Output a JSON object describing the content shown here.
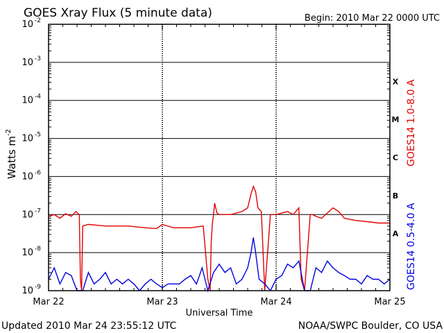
{
  "chart_data": {
    "type": "line",
    "title": "GOES Xray Flux (5 minute data)",
    "begin_label": "Begin:  2010 Mar 22 0000 UTC",
    "xlabel": "Universal Time",
    "ylabel_base": "Watts m",
    "ylabel_sup": "-2",
    "x_ticks": [
      "Mar 22",
      "Mar 23",
      "Mar 24",
      "Mar 25"
    ],
    "x_range_days": [
      0,
      3
    ],
    "y_ticks": [
      {
        "base": "10",
        "exp": "-2"
      },
      {
        "base": "10",
        "exp": "-3"
      },
      {
        "base": "10",
        "exp": "-4"
      },
      {
        "base": "10",
        "exp": "-5"
      },
      {
        "base": "10",
        "exp": "-6"
      },
      {
        "base": "10",
        "exp": "-7"
      },
      {
        "base": "10",
        "exp": "-8"
      },
      {
        "base": "10",
        "exp": "-9"
      }
    ],
    "y_scale": "log",
    "ylim": [
      1e-09,
      0.01
    ],
    "flare_classes": [
      "X",
      "M",
      "C",
      "B",
      "A"
    ],
    "series": [
      {
        "name": "GOES14 1.0-8.0 A",
        "color": "#e00000",
        "x": [
          0.0,
          0.05,
          0.1,
          0.15,
          0.2,
          0.24,
          0.27,
          0.28,
          0.29,
          0.3,
          0.35,
          0.5,
          0.7,
          0.85,
          0.95,
          1.0,
          1.1,
          1.25,
          1.36,
          1.4,
          1.42,
          1.43,
          1.44,
          1.45,
          1.46,
          1.48,
          1.5,
          1.6,
          1.7,
          1.75,
          1.78,
          1.8,
          1.82,
          1.84,
          1.87,
          1.9,
          1.95,
          2.0,
          2.1,
          2.15,
          2.2,
          2.22,
          2.25,
          2.3,
          2.32,
          2.35,
          2.4,
          2.5,
          2.55,
          2.6,
          2.7,
          2.8,
          2.9,
          2.95,
          3.0
        ],
        "y": [
          9e-08,
          1e-07,
          8e-08,
          1.05e-07,
          9e-08,
          1.2e-07,
          1e-07,
          2e-09,
          1e-09,
          5e-08,
          5.5e-08,
          5e-08,
          5e-08,
          4.5e-08,
          4.3e-08,
          5.5e-08,
          4.5e-08,
          4.5e-08,
          5e-08,
          2e-09,
          1e-09,
          2e-08,
          6e-08,
          1e-07,
          2e-07,
          1.1e-07,
          1e-07,
          1e-07,
          1.2e-07,
          1.5e-07,
          3.5e-07,
          5.5e-07,
          4e-07,
          1.5e-07,
          1.2e-07,
          1e-09,
          1e-07,
          1e-07,
          1.2e-07,
          1e-07,
          1.5e-07,
          2e-09,
          1e-09,
          1e-07,
          1e-07,
          9e-08,
          8e-08,
          1.5e-07,
          1.2e-07,
          8e-08,
          7e-08,
          6.5e-08,
          6e-08,
          6e-08,
          6e-08
        ]
      },
      {
        "name": "GOES14 0.5-4.0 A",
        "color": "#0000e0",
        "x": [
          0.0,
          0.05,
          0.1,
          0.15,
          0.2,
          0.25,
          0.3,
          0.35,
          0.4,
          0.45,
          0.5,
          0.55,
          0.6,
          0.65,
          0.7,
          0.75,
          0.8,
          0.85,
          0.9,
          0.95,
          1.0,
          1.05,
          1.1,
          1.15,
          1.2,
          1.25,
          1.3,
          1.35,
          1.4,
          1.45,
          1.5,
          1.55,
          1.6,
          1.65,
          1.7,
          1.75,
          1.78,
          1.8,
          1.82,
          1.85,
          1.9,
          1.95,
          2.0,
          2.05,
          2.1,
          2.15,
          2.2,
          2.25,
          2.3,
          2.35,
          2.4,
          2.45,
          2.5,
          2.55,
          2.6,
          2.65,
          2.7,
          2.75,
          2.8,
          2.85,
          2.9,
          2.95,
          3.0
        ],
        "y": [
          2e-09,
          4e-09,
          1.5e-09,
          3e-09,
          2.5e-09,
          1e-09,
          1e-09,
          3e-09,
          1.5e-09,
          2e-09,
          3e-09,
          1.5e-09,
          2e-09,
          1.5e-09,
          2e-09,
          1.5e-09,
          1e-09,
          1.5e-09,
          2e-09,
          1.5e-09,
          1.2e-09,
          1.5e-09,
          1.5e-09,
          1.5e-09,
          2e-09,
          2.5e-09,
          1.5e-09,
          4e-09,
          1e-09,
          3e-09,
          5e-09,
          3e-09,
          4e-09,
          1.5e-09,
          2e-09,
          4e-09,
          1e-08,
          2.5e-08,
          1e-08,
          2e-09,
          1.5e-09,
          1e-09,
          2e-09,
          2.5e-09,
          5e-09,
          4e-09,
          6e-09,
          1e-09,
          1e-09,
          4e-09,
          3e-09,
          6e-09,
          4e-09,
          3e-09,
          2.5e-09,
          2e-09,
          2e-09,
          1.5e-09,
          2.5e-09,
          2e-09,
          2e-09,
          1.5e-09,
          2e-09
        ]
      }
    ],
    "grid": true
  },
  "footer": {
    "updated": "Updated 2010 Mar 24 23:55:12 UTC",
    "source": "NOAA/SWPC Boulder, CO USA"
  }
}
